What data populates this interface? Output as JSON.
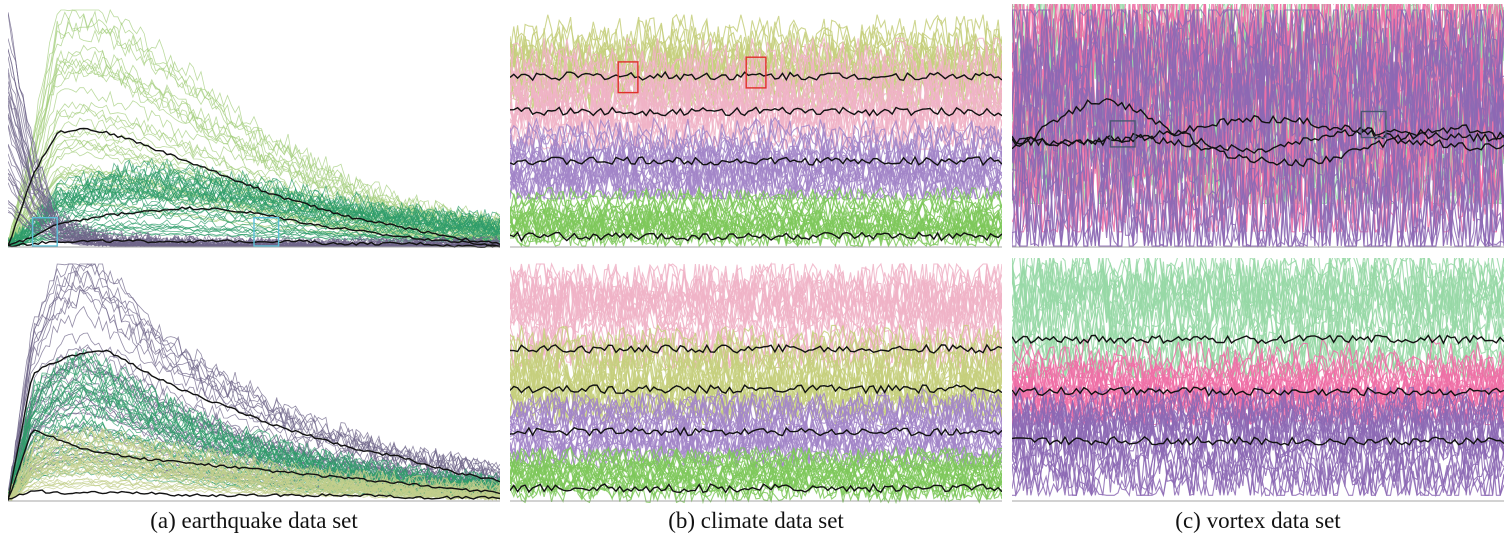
{
  "captions": {
    "earthquake": "(a) earthquake data set",
    "climate": "(b) climate data set",
    "vortex": "(c) vortex data set"
  },
  "colors": {
    "earthquake_green_light": "#a6cf7f",
    "earthquake_green_dark": "#2e9c6a",
    "earthquake_purple": "#6f6589",
    "earthquake_khaki": "#c3cf8c",
    "climate_olive": "#c5cf7c",
    "climate_pink": "#f0b3c7",
    "climate_purple": "#a285c8",
    "climate_green": "#7ec85a",
    "vortex_green": "#97d8a6",
    "vortex_pink": "#ee6fa6",
    "vortex_purple": "#8c68b4",
    "median_line": "#111111",
    "highlight_cyan": "#5bc0d8",
    "highlight_red": "#e0302a",
    "highlight_slate": "#4a5670"
  },
  "chart_data": [
    {
      "type": "line",
      "panel": "earthquake-top",
      "series": [
        {
          "color": "earthquake_green_light",
          "values": [
            0,
            45,
            96,
            100,
            96,
            90,
            82,
            74,
            66,
            58,
            50,
            44,
            38,
            32,
            27,
            23,
            19,
            16,
            14,
            12,
            11
          ]
        },
        {
          "color": "earthquake_green_dark",
          "values": [
            0,
            10,
            24,
            28,
            32,
            33,
            33,
            32,
            31,
            29,
            27,
            25,
            23,
            21,
            19,
            17,
            15,
            14,
            13,
            12,
            10
          ]
        },
        {
          "color": "earthquake_purple",
          "values": [
            92,
            40,
            12,
            6,
            3,
            2,
            1,
            1,
            0,
            0,
            0,
            0,
            0,
            0,
            0,
            0,
            0,
            0,
            0,
            0,
            0
          ]
        }
      ],
      "medians": [
        [
          0,
          30,
          48,
          50,
          48,
          45,
          41,
          37,
          33,
          29,
          25,
          21,
          18,
          15,
          12,
          10,
          8,
          6,
          4,
          2,
          1
        ],
        [
          0,
          4,
          9,
          11,
          13,
          14,
          15,
          16,
          16,
          15,
          14,
          12,
          10,
          8,
          7,
          5,
          4,
          3,
          2,
          1,
          0
        ],
        [
          0,
          1,
          2,
          2,
          2,
          2,
          2,
          2,
          2,
          2,
          2,
          2,
          2,
          1,
          1,
          1,
          1,
          1,
          0,
          0,
          0
        ]
      ],
      "highlights": [
        {
          "color": "highlight_cyan",
          "x": [
            1,
            2
          ],
          "y": [
            0,
            12
          ]
        },
        {
          "color": "highlight_cyan",
          "x": [
            10,
            11
          ],
          "y": [
            0,
            12
          ]
        }
      ],
      "ylim": [
        0,
        100
      ]
    },
    {
      "type": "line",
      "panel": "earthquake-bottom",
      "series": [
        {
          "color": "earthquake_purple",
          "values": [
            0,
            70,
            92,
            100,
            92,
            82,
            70,
            62,
            55,
            49,
            43,
            38,
            33,
            29,
            26,
            23,
            20,
            18,
            16,
            14,
            12
          ]
        },
        {
          "color": "earthquake_green_dark",
          "values": [
            0,
            44,
            54,
            58,
            54,
            48,
            42,
            37,
            32,
            28,
            25,
            22,
            19,
            17,
            15,
            13,
            11,
            10,
            9,
            8,
            7
          ]
        },
        {
          "color": "earthquake_khaki",
          "values": [
            0,
            22,
            26,
            27,
            26,
            24,
            22,
            20,
            18,
            16,
            14,
            12,
            11,
            10,
            9,
            8,
            7,
            6,
            5,
            5,
            4
          ]
        }
      ],
      "medians": [
        [
          0,
          54,
          59,
          62,
          63,
          58,
          52,
          47,
          43,
          39,
          35,
          31,
          28,
          25,
          22,
          20,
          18,
          15,
          12,
          10,
          8
        ],
        [
          0,
          30,
          26,
          22,
          20,
          18,
          17,
          16,
          15,
          14,
          13,
          12,
          11,
          10,
          9,
          8,
          7,
          6,
          5,
          4,
          3
        ],
        [
          0,
          4,
          3,
          3,
          3,
          3,
          3,
          2,
          2,
          2,
          2,
          2,
          2,
          2,
          2,
          2,
          1,
          1,
          1,
          1,
          1
        ]
      ],
      "ylim": [
        0,
        100
      ]
    },
    {
      "type": "line",
      "panel": "climate-top",
      "bands": [
        {
          "color": "climate_olive",
          "low": 62,
          "high": 90
        },
        {
          "color": "climate_pink",
          "low": 45,
          "high": 80
        },
        {
          "color": "climate_purple",
          "low": 24,
          "high": 48
        },
        {
          "color": "climate_green",
          "low": 4,
          "high": 20
        }
      ],
      "medians": [
        72,
        57,
        36,
        4
      ],
      "highlights": [
        {
          "color": "highlight_red",
          "x": [
            0.22,
            0.26
          ],
          "y": [
            65,
            78
          ]
        },
        {
          "color": "highlight_red",
          "x": [
            0.48,
            0.52
          ],
          "y": [
            67,
            80
          ]
        }
      ],
      "ylim": [
        0,
        100
      ]
    },
    {
      "type": "line",
      "panel": "climate-bottom",
      "bands": [
        {
          "color": "climate_pink",
          "low": 60,
          "high": 92
        },
        {
          "color": "climate_olive",
          "low": 36,
          "high": 66
        },
        {
          "color": "climate_purple",
          "low": 18,
          "high": 40
        },
        {
          "color": "climate_green",
          "low": 3,
          "high": 18
        }
      ],
      "medians": [
        64,
        47,
        29,
        5
      ],
      "ylim": [
        0,
        100
      ]
    },
    {
      "type": "line",
      "panel": "vortex-top",
      "bands": [
        {
          "color": "vortex_green",
          "low": 22,
          "high": 100
        },
        {
          "color": "vortex_pink",
          "low": 10,
          "high": 100
        },
        {
          "color": "vortex_purple",
          "low": 4,
          "high": 92
        }
      ],
      "medians": [
        [
          40,
          52,
          62,
          58,
          48,
          42,
          40,
          44,
          48,
          47,
          44,
          42,
          42
        ],
        [
          45,
          44,
          44,
          46,
          48,
          52,
          54,
          53,
          50,
          48,
          47,
          46,
          46
        ],
        [
          44,
          44,
          45,
          46,
          44,
          40,
          36,
          35,
          38,
          43,
          48,
          50,
          46
        ]
      ],
      "highlights": [
        {
          "color": "highlight_slate",
          "x": [
            0.2,
            0.25
          ],
          "y": [
            42,
            53
          ]
        },
        {
          "color": "highlight_slate",
          "x": [
            0.71,
            0.76
          ],
          "y": [
            46,
            57
          ]
        }
      ],
      "ylim": [
        0,
        100
      ]
    },
    {
      "type": "line",
      "panel": "vortex-bottom",
      "bands": [
        {
          "color": "vortex_green",
          "low": 56,
          "high": 96
        },
        {
          "color": "vortex_pink",
          "low": 36,
          "high": 62
        },
        {
          "color": "vortex_purple",
          "low": 6,
          "high": 40
        }
      ],
      "medians": [
        68,
        46,
        25
      ],
      "ylim": [
        0,
        100
      ]
    }
  ]
}
